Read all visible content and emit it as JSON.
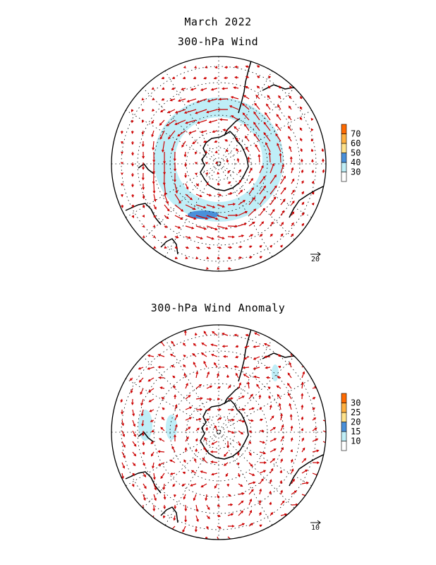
{
  "header": {
    "title": "March 2022",
    "subtitle_top": "300-hPa Wind",
    "subtitle_bottom": "300-hPa Wind Anomaly"
  },
  "maps": [
    {
      "name": "wind",
      "reference_vector_label": "20",
      "colorbar": {
        "labels": [
          "30",
          "40",
          "50",
          "60",
          "70"
        ],
        "colors": [
          "#ffffff",
          "#bfeef7",
          "#4a90d9",
          "#ffe28a",
          "#ffb040",
          "#ff6a00"
        ]
      },
      "jet_max_speed": 50
    },
    {
      "name": "anomaly",
      "reference_vector_label": "10",
      "colorbar": {
        "labels": [
          "10",
          "15",
          "20",
          "25",
          "30"
        ],
        "colors": [
          "#ffffff",
          "#bfeef7",
          "#4a90d9",
          "#ffe28a",
          "#ffb040",
          "#ff6a00"
        ]
      },
      "jet_max_speed": 15
    }
  ],
  "colors": {
    "arrow": "#cc0000",
    "coast": "#000000",
    "grid": "#000000"
  }
}
